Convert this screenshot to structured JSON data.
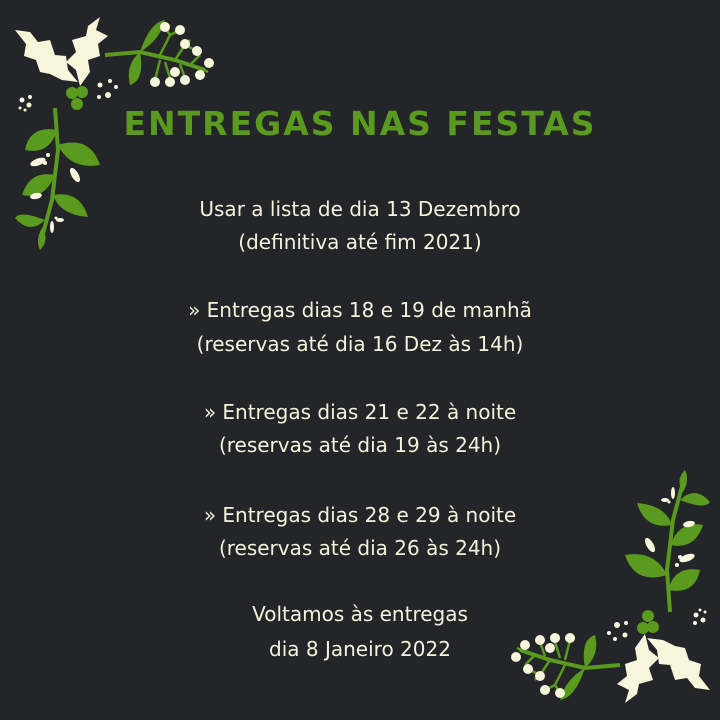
{
  "title": "ENTREGAS NAS FESTAS",
  "blocks": [
    {
      "line1": "Usar a lista de dia 13 Dezembro",
      "line2": "(definitiva até fim 2021)"
    },
    {
      "line1": "» Entregas dias 18 e 19 de manhã",
      "line2": "(reservas até dia 16 Dez às 14h)"
    },
    {
      "line1": "» Entregas dias 21 e 22 à noite",
      "line2": "(reservas até dia 19 às 24h)"
    },
    {
      "line1": "» Entregas dias 28 e 29 à noite",
      "line2": "(reservas até dia 26 às 24h)"
    },
    {
      "line1": "Voltamos às entregas",
      "line2": "dia 8 Janeiro 2022"
    }
  ],
  "colors": {
    "background": "#242528",
    "accent": "#5a9a1e",
    "text": "#f5f2dc"
  },
  "icons": [
    "holly-leaves-icon",
    "mistletoe-branch-icon",
    "berry-sprig-icon",
    "leaf-branch-icon"
  ]
}
